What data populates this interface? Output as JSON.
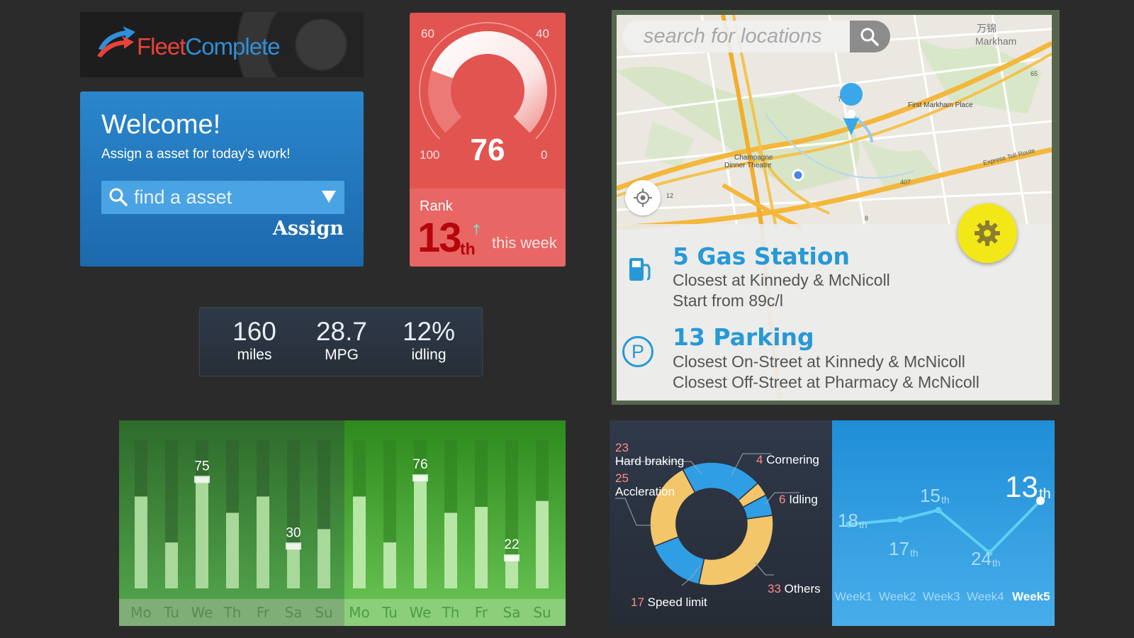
{
  "logo": {
    "part1": "Fleet",
    "part2": "Complete"
  },
  "welcome": {
    "title": "Welcome!",
    "subtitle": "Assign a asset for today's work!",
    "search_placeholder": "find a asset",
    "assign_label": "Assign"
  },
  "gauge": {
    "value": 76,
    "min": 0,
    "max": 100,
    "tick_labels": {
      "top_left": "60",
      "top_right": "40",
      "bottom_left": "100",
      "bottom_right": "0"
    },
    "rank_label": "Rank",
    "rank_number": "13",
    "rank_suffix": "th",
    "rank_period": "this week"
  },
  "stats": [
    {
      "value": "160",
      "label": "miles"
    },
    {
      "value": "28.7",
      "label": "MPG"
    },
    {
      "value": "12%",
      "label": "idling"
    }
  ],
  "map": {
    "search_placeholder": "search for locations",
    "labels": {
      "markham_cn": "万锦",
      "markham": "Markham",
      "first_markham": "First Markham Place",
      "champagne1": "Champagne",
      "champagne2": "Dinner Theatre",
      "expressway": "Express Toll Route",
      "r7": "7",
      "r12": "12",
      "r407": "407",
      "r65": "65",
      "r8": "8"
    },
    "gas": {
      "title": "5 Gas Station",
      "line1": "Closest at Kinnedy & McNicoll",
      "line2": "Start from 89c/l"
    },
    "parking": {
      "title": "13 Parking",
      "line1": "Closest On-Street at Kinnedy & McNicoll",
      "line2": "Closest Off-Street at Pharmacy & McNicoll"
    },
    "parking_icon_letter": "P"
  },
  "colors": {
    "gauge_red": "#e25450",
    "rank_red": "#b5060c",
    "donut_blue": "#2f9ee5",
    "donut_yellow": "#f4c66a",
    "map_accent": "#2799d6"
  },
  "chart_data": [
    {
      "type": "bar",
      "title": "",
      "categories": [
        "Mo",
        "Tu",
        "We",
        "Th",
        "Fr",
        "Sa",
        "Su",
        "Mo",
        "Tu",
        "We",
        "Th",
        "Fr",
        "Sa",
        "Su"
      ],
      "series": [
        {
          "values": [
            62,
            31,
            75,
            51,
            62,
            30,
            40,
            62,
            31,
            76,
            51,
            55,
            22,
            59
          ]
        }
      ],
      "data_labels": [
        null,
        null,
        "75",
        null,
        null,
        "30",
        null,
        null,
        null,
        "76",
        null,
        null,
        "22",
        null
      ],
      "ylim": [
        0,
        100
      ]
    },
    {
      "type": "pie",
      "title": "",
      "slices": [
        {
          "label": "Hard braking",
          "value": 23
        },
        {
          "label": "Cornering",
          "value": 4
        },
        {
          "label": "Idling",
          "value": 6
        },
        {
          "label": "Others",
          "value": 33
        },
        {
          "label": "Speed limit",
          "value": 17
        },
        {
          "label": "Accleration",
          "value": 25
        }
      ]
    },
    {
      "type": "line",
      "title": "",
      "categories": [
        "Week1",
        "Week2",
        "Week3",
        "Week4",
        "Week5"
      ],
      "series": [
        {
          "values": [
            18,
            17,
            15,
            24,
            13
          ]
        }
      ],
      "point_labels": [
        "18",
        "17",
        "15",
        "24",
        "13"
      ],
      "point_suffix": "th",
      "ylim": [
        26,
        11
      ]
    }
  ]
}
